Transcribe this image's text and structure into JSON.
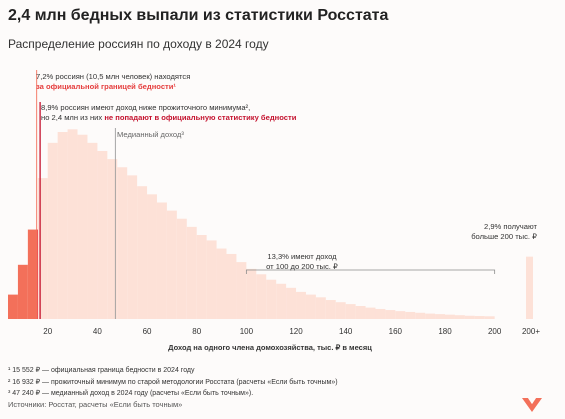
{
  "header": {
    "title": "2,4 млн бедных выпали из статистики Росстата",
    "subtitle": "Распределение россиян по доходу в 2024 году"
  },
  "annotations": {
    "official_line1": "7,2% россиян (10,5 млн человек) находятся",
    "official_line2": "за официальной границей бедности¹",
    "subsistence_line1": "8,9% россиян имеют доход ниже прожиточного минимума²,",
    "subsistence_line2a": "но 2,4 млн из них ",
    "subsistence_line2b": "не попадают в официальную статистику бедности",
    "median": "Медианный доход³",
    "range_line1": "13,3% имеют доход",
    "range_line2": "от 100 до 200 тыс. ₽",
    "top_line1": "2,9% получают",
    "top_line2": "больше 200 тыс. ₽"
  },
  "footnotes": {
    "f1": "¹ 15 552 ₽ — официальная граница бедности в 2024 году",
    "f2": "² 16 932 ₽ — прожиточный минимум по старой методологии Росстата (расчеты «Если быть точным»)",
    "f3": "³ 47 240 ₽ — медианный доход в 2024 году (расчеты «Если быть точным»)."
  },
  "source": "Источники: Росстат, расчеты «Если быть точным»",
  "colors": {
    "bar": "#fde1d7",
    "poor": "#f3705a",
    "gap": "#e8262c",
    "subsistence_line": "#c4122e",
    "median_line": "#9c9c9c",
    "logo": "#f3705a"
  },
  "chart_data": {
    "type": "bar",
    "xlabel": "Доход на одного члена домохозяйства, тыс. ₽ в месяц",
    "x_ticks": [
      "20",
      "40",
      "60",
      "80",
      "100",
      "120",
      "140",
      "160",
      "180",
      "200",
      "200+"
    ],
    "bin_width": 4,
    "x": [
      6,
      10,
      14,
      18,
      22,
      26,
      30,
      34,
      38,
      42,
      46,
      50,
      54,
      58,
      62,
      66,
      70,
      74,
      78,
      82,
      86,
      90,
      94,
      98,
      102,
      106,
      110,
      114,
      118,
      122,
      126,
      130,
      134,
      138,
      142,
      146,
      150,
      154,
      158,
      162,
      166,
      170,
      174,
      178,
      182,
      186,
      190,
      194,
      198,
      "200+"
    ],
    "values": [
      0.9,
      2.0,
      3.3,
      5.2,
      6.5,
      6.9,
      7.0,
      6.8,
      6.5,
      6.2,
      5.9,
      5.6,
      5.3,
      4.9,
      4.6,
      4.3,
      4.0,
      3.7,
      3.4,
      3.1,
      2.9,
      2.6,
      2.4,
      2.1,
      1.85,
      1.65,
      1.45,
      1.3,
      1.15,
      1.0,
      0.9,
      0.8,
      0.7,
      0.62,
      0.55,
      0.48,
      0.42,
      0.37,
      0.33,
      0.29,
      0.26,
      0.23,
      0.2,
      0.18,
      0.16,
      0.14,
      0.12,
      0.11,
      0.1,
      2.3
    ],
    "poverty_line": 15.552,
    "subsistence_minimum": 16.932,
    "median": 47.24,
    "shares": {
      "below_poverty": 7.2,
      "below_subsistence": 8.9,
      "from_100_to_200": 13.3,
      "above_200": 2.9
    }
  }
}
